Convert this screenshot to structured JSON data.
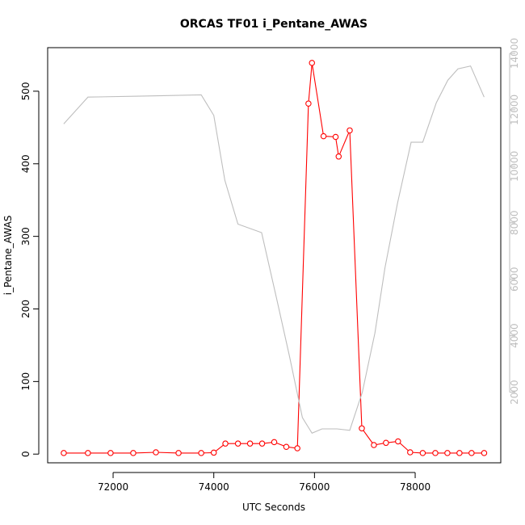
{
  "chart_data": {
    "type": "line",
    "title": "ORCAS TF01 i_Pentane_AWAS",
    "xlabel": "UTC Seconds",
    "ylabel": "i_Pentane_AWAS",
    "y2label": "",
    "xlim": [
      70700,
      79700
    ],
    "ylim": [
      -12,
      560
    ],
    "y2lim": [
      -500,
      14200
    ],
    "x_ticks": [
      72000,
      74000,
      76000,
      78000
    ],
    "y_ticks": [
      0,
      100,
      200,
      300,
      400,
      500
    ],
    "y2_ticks": [
      2000,
      4000,
      6000,
      8000,
      10000,
      12000,
      14000
    ],
    "grid": false,
    "colors": {
      "primary_series": "#ff0000",
      "secondary_series": "#bebebe",
      "axes": "#000000",
      "right_axis": "#bebebe"
    },
    "series": [
      {
        "axis": "left",
        "style": "line-with-open-circles",
        "points": [
          [
            71020,
            1.5
          ],
          [
            71500,
            1.5
          ],
          [
            71950,
            1.5
          ],
          [
            72400,
            1.5
          ],
          [
            72850,
            2.5
          ],
          [
            73300,
            1.5
          ],
          [
            73750,
            1.5
          ],
          [
            74000,
            2
          ],
          [
            74230,
            14.5
          ],
          [
            74480,
            14.5
          ],
          [
            74720,
            14.5
          ],
          [
            74960,
            14.5
          ],
          [
            75200,
            16.5
          ],
          [
            75440,
            10
          ],
          [
            75660,
            8
          ],
          [
            75880,
            483
          ],
          [
            75950,
            539
          ],
          [
            76180,
            438
          ],
          [
            76420,
            437
          ],
          [
            76480,
            410
          ],
          [
            76700,
            446
          ],
          [
            76940,
            35.5
          ],
          [
            77180,
            12.5
          ],
          [
            77420,
            15.5
          ],
          [
            77660,
            17.5
          ],
          [
            77900,
            2.5
          ],
          [
            78150,
            1.5
          ],
          [
            78400,
            1.5
          ],
          [
            78640,
            1.5
          ],
          [
            78880,
            1.5
          ],
          [
            79120,
            1.5
          ],
          [
            79370,
            1.5
          ]
        ]
      },
      {
        "axis": "right",
        "style": "line",
        "points": [
          [
            71020,
            11500
          ],
          [
            71500,
            12450
          ],
          [
            72500,
            12480
          ],
          [
            73000,
            12500
          ],
          [
            73750,
            12530
          ],
          [
            74000,
            11800
          ],
          [
            74220,
            9500
          ],
          [
            74480,
            7950
          ],
          [
            74950,
            7650
          ],
          [
            75250,
            5300
          ],
          [
            75500,
            3300
          ],
          [
            75760,
            1100
          ],
          [
            75950,
            550
          ],
          [
            76150,
            700
          ],
          [
            76450,
            700
          ],
          [
            76700,
            650
          ],
          [
            76950,
            2000
          ],
          [
            77200,
            4100
          ],
          [
            77400,
            6400
          ],
          [
            77650,
            8700
          ],
          [
            77920,
            10850
          ],
          [
            78150,
            10850
          ],
          [
            78420,
            12250
          ],
          [
            78650,
            13050
          ],
          [
            78850,
            13450
          ],
          [
            79100,
            13550
          ],
          [
            79370,
            12450
          ]
        ]
      }
    ]
  }
}
